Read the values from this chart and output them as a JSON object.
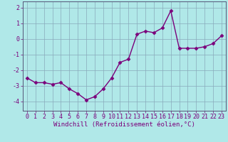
{
  "x": [
    0,
    1,
    2,
    3,
    4,
    5,
    6,
    7,
    8,
    9,
    10,
    11,
    12,
    13,
    14,
    15,
    16,
    17,
    18,
    19,
    20,
    21,
    22,
    23
  ],
  "y": [
    -2.5,
    -2.8,
    -2.8,
    -2.9,
    -2.8,
    -3.2,
    -3.5,
    -3.9,
    -3.7,
    -3.2,
    -2.5,
    -1.5,
    -1.3,
    0.3,
    0.5,
    0.4,
    0.7,
    1.8,
    -0.6,
    -0.6,
    -0.6,
    -0.5,
    -0.3,
    0.2
  ],
  "line_color": "#7b007b",
  "marker": "D",
  "marker_size": 2.5,
  "linewidth": 1.0,
  "bg_color": "#b0e8e8",
  "grid_color": "#88aabb",
  "xlabel": "Windchill (Refroidissement éolien,°C)",
  "xlabel_fontsize": 6.5,
  "xtick_labels": [
    "0",
    "1",
    "2",
    "3",
    "4",
    "5",
    "6",
    "7",
    "8",
    "9",
    "10",
    "11",
    "12",
    "13",
    "14",
    "15",
    "16",
    "17",
    "18",
    "19",
    "20",
    "21",
    "22",
    "23"
  ],
  "ytick_values": [
    -4,
    -3,
    -2,
    -1,
    0,
    1,
    2
  ],
  "ylim": [
    -4.6,
    2.4
  ],
  "xlim": [
    -0.5,
    23.5
  ],
  "tick_fontsize": 6,
  "spine_color": "#555577"
}
